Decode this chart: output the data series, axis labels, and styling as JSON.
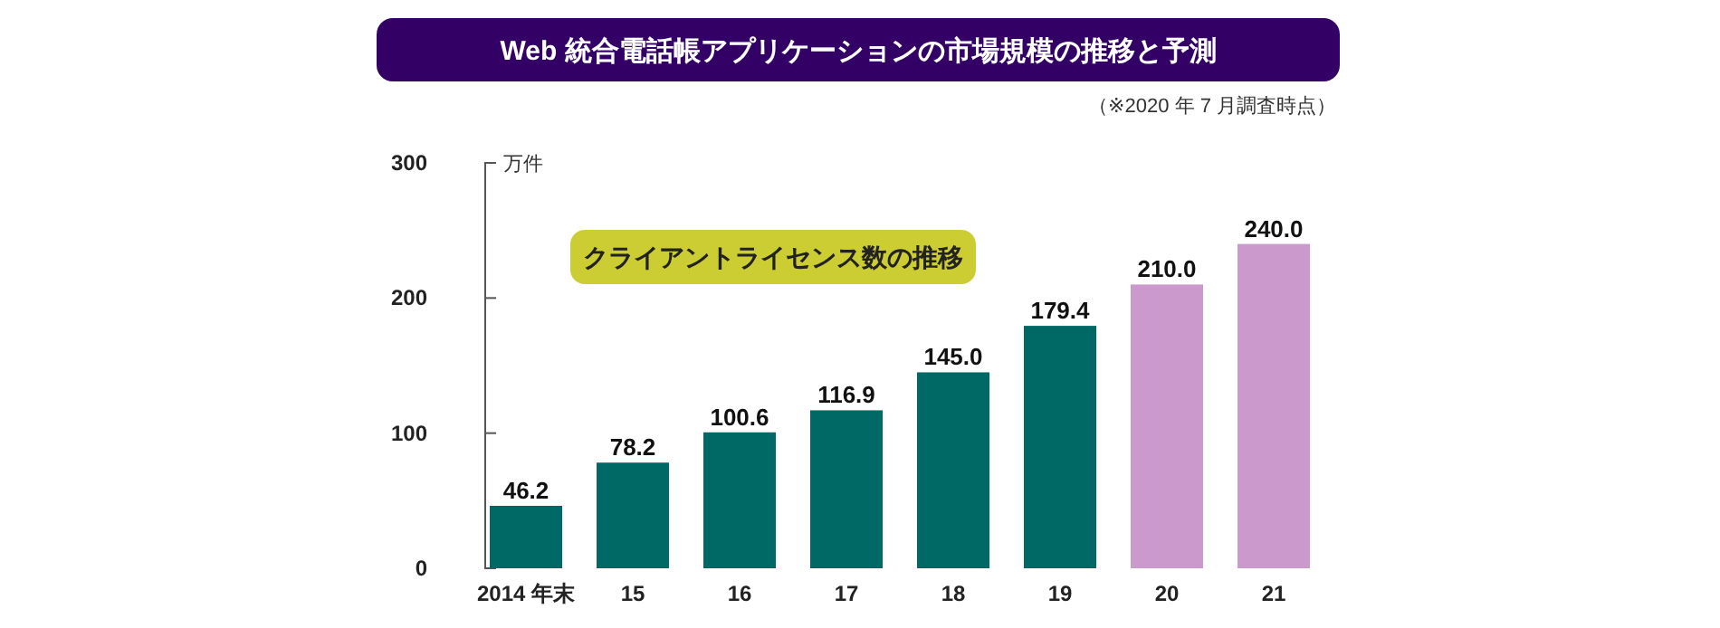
{
  "chart_data": {
    "type": "bar",
    "title": "Web 統合電話帳アプリケーションの市場規模の推移と予測",
    "subtitle": "（※2020 年 7 月調査時点）",
    "ylabel": "万件",
    "annotations": [
      "クライアントライセンス数の推移"
    ],
    "categories": [
      "2014 年末",
      "15",
      "16",
      "17",
      "18",
      "19",
      "20",
      "21"
    ],
    "values": [
      46.2,
      78.2,
      100.6,
      116.9,
      145.0,
      179.4,
      210.0,
      240.0
    ],
    "value_labels": [
      "46.2",
      "78.2",
      "100.6",
      "116.9",
      "145.0",
      "179.4",
      "210.0",
      "240.0"
    ],
    "colors": [
      "#006965",
      "#006965",
      "#006965",
      "#006965",
      "#006965",
      "#006965",
      "#cc99cc",
      "#cc99cc"
    ],
    "ylim": [
      0,
      300
    ],
    "yticks": [
      0,
      100,
      200,
      300
    ],
    "grid": false
  }
}
